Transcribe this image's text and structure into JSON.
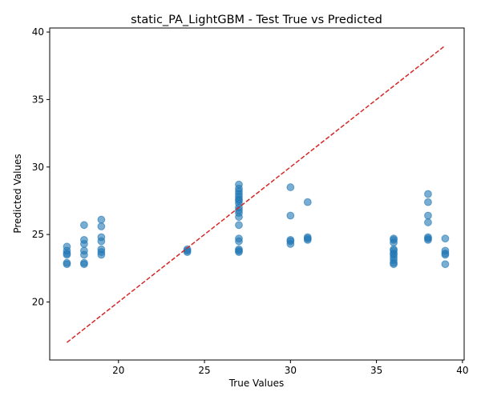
{
  "chart_data": {
    "type": "scatter",
    "title": "static_PA_LightGBM - Test True vs Predicted",
    "xlabel": "True Values",
    "ylabel": "Predicted Values",
    "xlim": [
      16.0,
      40.1
    ],
    "ylim": [
      15.7,
      40.3
    ],
    "xticks": [
      20,
      25,
      30,
      35,
      40
    ],
    "yticks": [
      20,
      25,
      30,
      35,
      40
    ],
    "grid": false,
    "point_color": "#1f77b4",
    "point_alpha": 0.6,
    "reference_line": {
      "x": [
        17,
        39
      ],
      "y": [
        17,
        39
      ],
      "color": "#d62728",
      "style": "dashed"
    },
    "series": [
      {
        "points": [
          [
            17,
            24.1
          ],
          [
            17,
            23.8
          ],
          [
            17,
            23.6
          ],
          [
            17,
            23.5
          ],
          [
            17,
            22.9
          ],
          [
            17,
            22.8
          ],
          [
            18,
            25.7
          ],
          [
            18,
            24.6
          ],
          [
            18,
            24.3
          ],
          [
            18,
            23.8
          ],
          [
            18,
            23.5
          ],
          [
            18,
            22.9
          ],
          [
            18,
            22.8
          ],
          [
            19,
            26.1
          ],
          [
            19,
            25.6
          ],
          [
            19,
            24.8
          ],
          [
            19,
            24.5
          ],
          [
            19,
            23.9
          ],
          [
            19,
            23.7
          ],
          [
            19,
            23.5
          ],
          [
            24,
            23.9
          ],
          [
            24,
            23.8
          ],
          [
            24,
            23.7
          ],
          [
            27,
            28.7
          ],
          [
            27,
            28.4
          ],
          [
            27,
            28.2
          ],
          [
            27,
            28.0
          ],
          [
            27,
            27.8
          ],
          [
            27,
            27.6
          ],
          [
            27,
            27.5
          ],
          [
            27,
            27.3
          ],
          [
            27,
            27.0
          ],
          [
            27,
            26.8
          ],
          [
            27,
            26.6
          ],
          [
            27,
            26.3
          ],
          [
            27,
            25.7
          ],
          [
            27,
            24.7
          ],
          [
            27,
            24.5
          ],
          [
            27,
            23.9
          ],
          [
            27,
            23.8
          ],
          [
            27,
            23.7
          ],
          [
            30,
            28.5
          ],
          [
            30,
            26.4
          ],
          [
            30,
            24.6
          ],
          [
            30,
            24.5
          ],
          [
            30,
            24.3
          ],
          [
            31,
            27.4
          ],
          [
            31,
            24.8
          ],
          [
            31,
            24.7
          ],
          [
            31,
            24.6
          ],
          [
            36,
            24.7
          ],
          [
            36,
            24.6
          ],
          [
            36,
            24.4
          ],
          [
            36,
            23.9
          ],
          [
            36,
            23.8
          ],
          [
            36,
            23.6
          ],
          [
            36,
            23.5
          ],
          [
            36,
            23.3
          ],
          [
            36,
            23.1
          ],
          [
            36,
            22.9
          ],
          [
            36,
            22.8
          ],
          [
            38,
            28.0
          ],
          [
            38,
            27.4
          ],
          [
            38,
            26.4
          ],
          [
            38,
            25.9
          ],
          [
            38,
            24.8
          ],
          [
            38,
            24.7
          ],
          [
            38,
            24.6
          ],
          [
            39,
            24.7
          ],
          [
            39,
            23.8
          ],
          [
            39,
            23.6
          ],
          [
            39,
            23.5
          ],
          [
            39,
            22.8
          ]
        ]
      }
    ]
  }
}
